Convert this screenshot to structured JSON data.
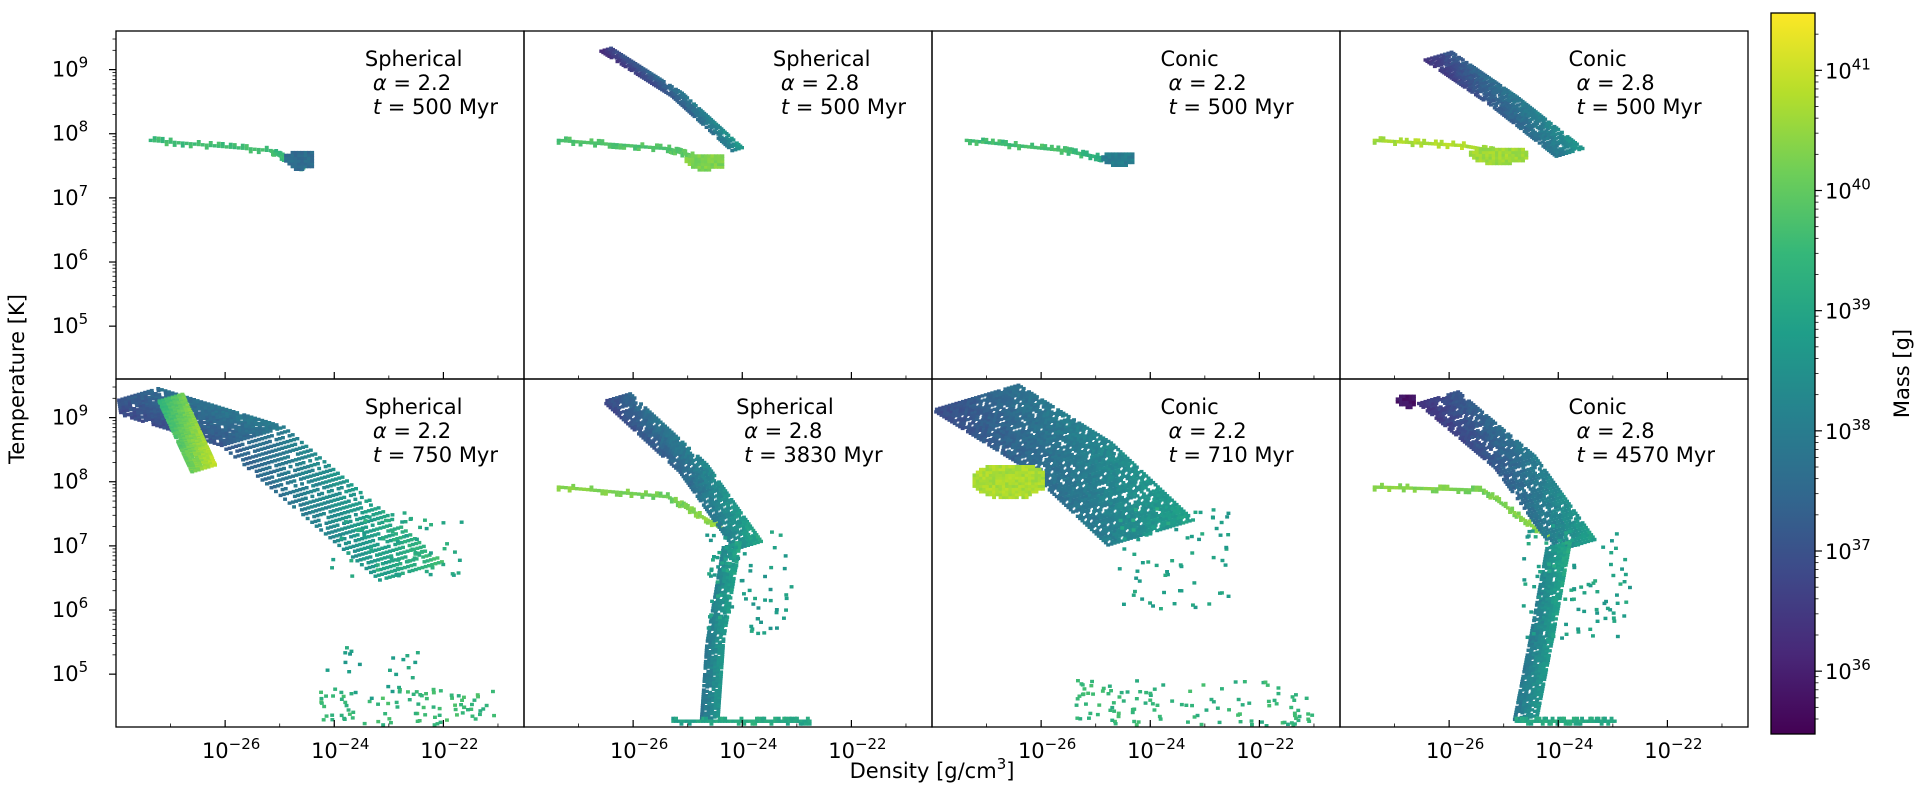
{
  "chart_data": {
    "type": "heatmap",
    "title": "",
    "xlabel": "Density [g/cm³]",
    "ylabel": "Temperature [K]",
    "x_scale": "log",
    "y_scale": "log",
    "xlim": [
      1e-28,
      3e-21
    ],
    "ylim": [
      15000,
      4000000000
    ],
    "x_ticks": [
      {
        "value": 1e-26,
        "base": "10",
        "exp": "−26"
      },
      {
        "value": 1e-24,
        "base": "10",
        "exp": "−24"
      },
      {
        "value": 1e-22,
        "base": "10",
        "exp": "−22"
      }
    ],
    "y_ticks": [
      {
        "value": 100000,
        "base": "10",
        "exp": "5"
      },
      {
        "value": 1000000,
        "base": "10",
        "exp": "6"
      },
      {
        "value": 10000000,
        "base": "10",
        "exp": "7"
      },
      {
        "value": 100000000,
        "base": "10",
        "exp": "8"
      },
      {
        "value": 1000000000,
        "base": "10",
        "exp": "9"
      }
    ],
    "grid": false,
    "colormap": "viridis",
    "colorbar": {
      "label": "Mass [g]",
      "scale": "log",
      "range": [
        3e+35,
        3e+41
      ],
      "ticks": [
        {
          "value": 1e+36,
          "base": "10",
          "exp": "36"
        },
        {
          "value": 1e+37,
          "base": "10",
          "exp": "37"
        },
        {
          "value": 1e+38,
          "base": "10",
          "exp": "38"
        },
        {
          "value": 1e+39,
          "base": "10",
          "exp": "39"
        },
        {
          "value": 1e+40,
          "base": "10",
          "exp": "40"
        },
        {
          "value": 1e+41,
          "base": "10",
          "exp": "41"
        }
      ],
      "colors": [
        "#440154",
        "#482878",
        "#3e4989",
        "#31688e",
        "#26828e",
        "#1f9e89",
        "#35b779",
        "#6ece58",
        "#b5de2b",
        "#fde725"
      ]
    },
    "panels": [
      {
        "model": "Spherical",
        "alpha": "2.2",
        "time": "500 Myr",
        "regions": [
          {
            "kind": "tail",
            "logrho": [
              -27.4,
              -25.2,
              -24.6
            ],
            "logT": [
              7.88,
              7.72,
              7.45
            ],
            "mass": [
              39.6,
              39.6,
              39.4
            ]
          },
          {
            "kind": "blob",
            "logrho": -24.65,
            "logT": 7.58,
            "w": 0.55,
            "h": 0.3,
            "mass": 37.6
          }
        ]
      },
      {
        "model": "Spherical",
        "alpha": "2.8",
        "time": "500 Myr",
        "regions": [
          {
            "kind": "tail",
            "logrho": [
              -27.4,
              -25.4,
              -24.6
            ],
            "logT": [
              7.88,
              7.75,
              7.55
            ],
            "mass": [
              39.7,
              39.8,
              40.1
            ]
          },
          {
            "kind": "stream",
            "logrho": [
              -26.5,
              -25.2,
              -24.1
            ],
            "logT": [
              9.3,
              8.6,
              7.75
            ],
            "mass": [
              36.6,
              37.6,
              38.5
            ],
            "w": 0.25
          },
          {
            "kind": "blob",
            "logrho": -24.7,
            "logT": 7.55,
            "w": 0.7,
            "h": 0.25,
            "mass": 40.3
          }
        ]
      },
      {
        "model": "Conic",
        "alpha": "2.2",
        "time": "500 Myr",
        "regions": [
          {
            "kind": "tail",
            "logrho": [
              -27.4,
              -25.6,
              -24.6
            ],
            "logT": [
              7.88,
              7.72,
              7.55
            ],
            "mass": [
              39.6,
              39.7,
              39.0
            ]
          },
          {
            "kind": "blob",
            "logrho": -24.6,
            "logT": 7.6,
            "w": 0.6,
            "h": 0.22,
            "mass": 38.0
          }
        ]
      },
      {
        "model": "Conic",
        "alpha": "2.8",
        "time": "500 Myr",
        "regions": [
          {
            "kind": "tail",
            "logrho": [
              -27.4,
              -25.8,
              -24.8
            ],
            "logT": [
              7.88,
              7.8,
              7.65
            ],
            "mass": [
              40.6,
              40.8,
              40.2
            ]
          },
          {
            "kind": "stream",
            "logrho": [
              -26.2,
              -25.0,
              -23.8
            ],
            "logT": [
              9.2,
              8.5,
              7.7
            ],
            "mass": [
              36.8,
              37.6,
              38.3
            ],
            "w": 0.55
          },
          {
            "kind": "blob",
            "logrho": -25.1,
            "logT": 7.65,
            "w": 1.1,
            "h": 0.25,
            "mass": 40.6
          }
        ]
      },
      {
        "model": "Spherical",
        "alpha": "2.2",
        "time": "750 Myr",
        "regions": [
          {
            "kind": "stream",
            "logrho": [
              -27.8,
              -25.5,
              -22.6
            ],
            "logT": [
              9.3,
              8.7,
              6.6
            ],
            "mass": [
              37.2,
              37.6,
              39.2
            ],
            "w": 1.2
          },
          {
            "kind": "stream",
            "logrho": [
              -27.0,
              -26.4
            ],
            "logT": [
              9.3,
              8.2
            ],
            "mass": [
              39.8,
              40.6
            ],
            "w": 0.45
          },
          {
            "kind": "scatter",
            "logrho": -22.9,
            "logT": 7.0,
            "w": 1.2,
            "h": 0.5,
            "mass": 39.1,
            "n": 60
          },
          {
            "kind": "scatter",
            "logrho": -22.7,
            "logT": 4.4,
            "w": 1.6,
            "h": 0.35,
            "mass": 39.5,
            "n": 120
          },
          {
            "kind": "scatter",
            "logrho": -23.4,
            "logT": 5.0,
            "w": 0.9,
            "h": 0.4,
            "mass": 38.9,
            "n": 22
          }
        ]
      },
      {
        "model": "Spherical",
        "alpha": "2.8",
        "time": "3830 Myr",
        "regions": [
          {
            "kind": "tail",
            "logrho": [
              -27.4,
              -25.4,
              -24.3
            ],
            "logT": [
              7.9,
              7.75,
              7.2
            ],
            "mass": [
              40.4,
              40.1,
              40.6
            ]
          },
          {
            "kind": "stream",
            "logrho": [
              -26.3,
              -24.9,
              -23.9
            ],
            "logT": [
              9.3,
              8.2,
              7.0
            ],
            "mass": [
              37.2,
              37.9,
              38.7
            ],
            "w": 0.55
          },
          {
            "kind": "stream",
            "logrho": [
              -24.2,
              -24.5,
              -24.6
            ],
            "logT": [
              7.0,
              5.5,
              4.3
            ],
            "mass": [
              38.7,
              38.4,
              38.2
            ],
            "w": 0.35
          },
          {
            "kind": "scatter",
            "logrho": -23.9,
            "logT": 6.4,
            "w": 0.8,
            "h": 0.8,
            "mass": 38.8,
            "n": 80
          },
          {
            "kind": "tail",
            "logrho": [
              -25.3,
              -23.8,
              -22.8
            ],
            "logT": [
              4.25,
              4.25,
              4.25
            ],
            "mass": [
              38.9,
              39.2,
              39.0
            ]
          }
        ]
      },
      {
        "model": "Conic",
        "alpha": "2.2",
        "time": "710 Myr",
        "regions": [
          {
            "kind": "stream",
            "logrho": [
              -27.2,
              -25.5,
              -24.0
            ],
            "logT": [
              9.3,
              8.4,
              7.2
            ],
            "mass": [
              37.3,
              37.9,
              38.5
            ],
            "w": 1.6
          },
          {
            "kind": "blob",
            "logrho": -26.6,
            "logT": 8.0,
            "w": 1.3,
            "h": 0.5,
            "mass": 40.7
          },
          {
            "kind": "scatter",
            "logrho": -23.6,
            "logT": 6.8,
            "w": 1.0,
            "h": 0.8,
            "mass": 38.9,
            "n": 70
          },
          {
            "kind": "scatter",
            "logrho": -23.2,
            "logT": 4.4,
            "w": 2.2,
            "h": 0.5,
            "mass": 39.4,
            "n": 160
          }
        ]
      },
      {
        "model": "Conic",
        "alpha": "2.8",
        "time": "4570 Myr",
        "regions": [
          {
            "kind": "tail",
            "logrho": [
              -27.4,
              -25.4,
              -24.2
            ],
            "logT": [
              7.9,
              7.85,
              7.1
            ],
            "mass": [
              40.4,
              40.2,
              40.5
            ]
          },
          {
            "kind": "stream",
            "logrho": [
              -26.2,
              -24.8,
              -23.7
            ],
            "logT": [
              9.3,
              8.3,
              7.0
            ],
            "mass": [
              36.8,
              37.6,
              38.5
            ],
            "w": 0.8
          },
          {
            "kind": "stream",
            "logrho": [
              -24.0,
              -24.3,
              -24.6
            ],
            "logT": [
              7.0,
              5.6,
              4.3
            ],
            "mass": [
              38.8,
              38.4,
              38.3
            ],
            "w": 0.45
          },
          {
            "kind": "scatter",
            "logrho": -23.7,
            "logT": 6.4,
            "w": 1.0,
            "h": 0.9,
            "mass": 38.9,
            "n": 90
          },
          {
            "kind": "tail",
            "logrho": [
              -24.8,
              -23.9,
              -23.0
            ],
            "logT": [
              4.25,
              4.25,
              4.25
            ],
            "mass": [
              39.0,
              39.2,
              39.0
            ]
          },
          {
            "kind": "blob",
            "logrho": -26.8,
            "logT": 9.25,
            "w": 0.35,
            "h": 0.2,
            "mass": 35.8
          }
        ]
      }
    ]
  }
}
